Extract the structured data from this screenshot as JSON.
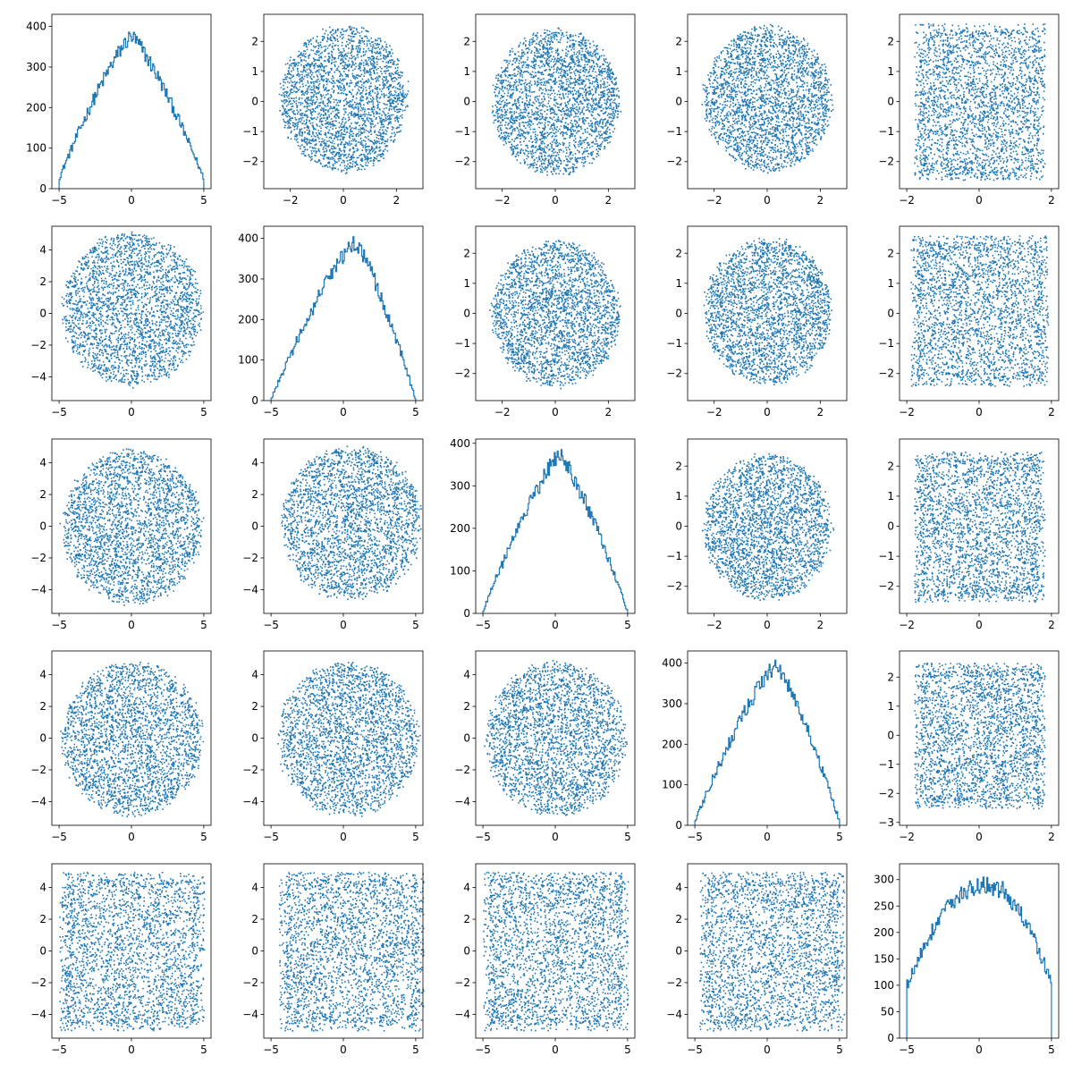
{
  "figure": {
    "rows": 5,
    "cols": 5,
    "mark_color": "#1f77b4",
    "grid": false
  },
  "chart_data": [
    {
      "row": 0,
      "col": 0,
      "type": "histogram",
      "variable": 1,
      "xlim": [
        -5.5,
        5.5
      ],
      "ylim": [
        0,
        430
      ],
      "xticks": [
        -5,
        0,
        5
      ],
      "yticks": [
        0,
        100,
        200,
        300,
        400
      ],
      "profile": "tent",
      "peak": 375,
      "edge": 25,
      "center": 0.0
    },
    {
      "row": 0,
      "col": 1,
      "type": "scatter",
      "xvar": 2,
      "yvar": 1,
      "xlim": [
        -3.0,
        3.0
      ],
      "ylim": [
        -2.9,
        2.9
      ],
      "xticks": [
        -2,
        0,
        2
      ],
      "yticks": [
        -2,
        -1,
        0,
        1,
        2
      ],
      "shape": "disk",
      "cx": 0.0,
      "cy": 0.1,
      "rx": 2.5,
      "ry": 2.5
    },
    {
      "row": 0,
      "col": 2,
      "type": "scatter",
      "xvar": 3,
      "yvar": 1,
      "xlim": [
        -3.0,
        3.0
      ],
      "ylim": [
        -2.9,
        2.9
      ],
      "xticks": [
        -2,
        0,
        2
      ],
      "yticks": [
        -2,
        -1,
        0,
        1,
        2
      ],
      "shape": "disk",
      "cx": 0.0,
      "cy": 0.0,
      "rx": 2.5,
      "ry": 2.5
    },
    {
      "row": 0,
      "col": 3,
      "type": "scatter",
      "xvar": 4,
      "yvar": 1,
      "xlim": [
        -3.0,
        3.0
      ],
      "ylim": [
        -2.9,
        2.9
      ],
      "xticks": [
        -2,
        0,
        2
      ],
      "yticks": [
        -2,
        -1,
        0,
        1,
        2
      ],
      "shape": "disk",
      "cx": 0.0,
      "cy": 0.1,
      "rx": 2.5,
      "ry": 2.5
    },
    {
      "row": 0,
      "col": 4,
      "type": "scatter",
      "xvar": 5,
      "yvar": 1,
      "xlim": [
        -2.2,
        2.2
      ],
      "ylim": [
        -2.9,
        2.9
      ],
      "xticks": [
        -2,
        0,
        2
      ],
      "yticks": [
        -2,
        -1,
        0,
        1,
        2
      ],
      "shape": "box",
      "cx": 0.0,
      "cy": 0.0,
      "rx": 1.8,
      "ry": 2.6
    },
    {
      "row": 1,
      "col": 0,
      "type": "scatter",
      "xvar": 1,
      "yvar": 2,
      "xlim": [
        -5.5,
        5.5
      ],
      "ylim": [
        -5.5,
        5.5
      ],
      "xticks": [
        -5,
        0,
        5
      ],
      "yticks": [
        -4,
        -2,
        0,
        2,
        4
      ],
      "shape": "disk",
      "cx": 0.0,
      "cy": 0.3,
      "rx": 5.0,
      "ry": 5.0
    },
    {
      "row": 1,
      "col": 1,
      "type": "histogram",
      "variable": 2,
      "xlim": [
        -5.5,
        5.5
      ],
      "ylim": [
        0,
        430
      ],
      "xticks": [
        -5,
        0,
        5
      ],
      "yticks": [
        0,
        100,
        200,
        300,
        400
      ],
      "profile": "tent",
      "peak": 390,
      "edge": 3,
      "center": 0.8
    },
    {
      "row": 1,
      "col": 2,
      "type": "scatter",
      "xvar": 3,
      "yvar": 2,
      "xlim": [
        -3.0,
        3.0
      ],
      "ylim": [
        -2.9,
        2.9
      ],
      "xticks": [
        -2,
        0,
        2
      ],
      "yticks": [
        -2,
        -1,
        0,
        1,
        2
      ],
      "shape": "disk",
      "cx": 0.0,
      "cy": 0.0,
      "rx": 2.5,
      "ry": 2.5
    },
    {
      "row": 1,
      "col": 3,
      "type": "scatter",
      "xvar": 4,
      "yvar": 2,
      "xlim": [
        -3.0,
        3.0
      ],
      "ylim": [
        -2.9,
        2.9
      ],
      "xticks": [
        -2,
        0,
        2
      ],
      "yticks": [
        -2,
        -1,
        0,
        1,
        2
      ],
      "shape": "disk",
      "cx": 0.0,
      "cy": 0.1,
      "rx": 2.5,
      "ry": 2.5
    },
    {
      "row": 1,
      "col": 4,
      "type": "scatter",
      "xvar": 5,
      "yvar": 2,
      "xlim": [
        -2.2,
        2.2
      ],
      "ylim": [
        -2.9,
        2.9
      ],
      "xticks": [
        -2,
        0,
        2
      ],
      "yticks": [
        -2,
        -1,
        0,
        1,
        2
      ],
      "shape": "box",
      "cx": 0.0,
      "cy": 0.1,
      "rx": 1.9,
      "ry": 2.5
    },
    {
      "row": 2,
      "col": 0,
      "type": "scatter",
      "xvar": 1,
      "yvar": 3,
      "xlim": [
        -5.5,
        5.5
      ],
      "ylim": [
        -5.5,
        5.5
      ],
      "xticks": [
        -5,
        0,
        5
      ],
      "yticks": [
        -4,
        -2,
        0,
        2,
        4
      ],
      "shape": "disk",
      "cx": 0.0,
      "cy": 0.0,
      "rx": 5.0,
      "ry": 5.0
    },
    {
      "row": 2,
      "col": 1,
      "type": "scatter",
      "xvar": 2,
      "yvar": 3,
      "xlim": [
        -5.5,
        5.5
      ],
      "ylim": [
        -5.5,
        5.5
      ],
      "xticks": [
        -5,
        0,
        5
      ],
      "yticks": [
        -4,
        -2,
        0,
        2,
        4
      ],
      "shape": "disk",
      "cx": 0.5,
      "cy": 0.2,
      "rx": 5.0,
      "ry": 5.0
    },
    {
      "row": 2,
      "col": 2,
      "type": "histogram",
      "variable": 3,
      "xlim": [
        -5.5,
        5.5
      ],
      "ylim": [
        0,
        410
      ],
      "xticks": [
        -5,
        0,
        5
      ],
      "yticks": [
        0,
        100,
        200,
        300,
        400
      ],
      "profile": "tent",
      "peak": 370,
      "edge": 5,
      "center": 0.3
    },
    {
      "row": 2,
      "col": 3,
      "type": "scatter",
      "xvar": 4,
      "yvar": 3,
      "xlim": [
        -3.0,
        3.0
      ],
      "ylim": [
        -2.9,
        2.9
      ],
      "xticks": [
        -2,
        0,
        2
      ],
      "yticks": [
        -2,
        -1,
        0,
        1,
        2
      ],
      "shape": "disk",
      "cx": 0.0,
      "cy": 0.0,
      "rx": 2.5,
      "ry": 2.5
    },
    {
      "row": 2,
      "col": 4,
      "type": "scatter",
      "xvar": 5,
      "yvar": 3,
      "xlim": [
        -2.2,
        2.2
      ],
      "ylim": [
        -2.9,
        2.9
      ],
      "xticks": [
        -2,
        0,
        2
      ],
      "yticks": [
        -2,
        -1,
        0,
        1,
        2
      ],
      "shape": "box",
      "cx": 0.0,
      "cy": 0.0,
      "rx": 1.8,
      "ry": 2.5
    },
    {
      "row": 3,
      "col": 0,
      "type": "scatter",
      "xvar": 1,
      "yvar": 4,
      "xlim": [
        -5.5,
        5.5
      ],
      "ylim": [
        -5.5,
        5.5
      ],
      "xticks": [
        -5,
        0,
        5
      ],
      "yticks": [
        -4,
        -2,
        0,
        2,
        4
      ],
      "shape": "disk",
      "cx": 0.0,
      "cy": 0.0,
      "rx": 5.0,
      "ry": 5.0
    },
    {
      "row": 3,
      "col": 1,
      "type": "scatter",
      "xvar": 2,
      "yvar": 4,
      "xlim": [
        -5.5,
        5.5
      ],
      "ylim": [
        -5.5,
        5.5
      ],
      "xticks": [
        -5,
        0,
        5
      ],
      "yticks": [
        -4,
        -2,
        0,
        2,
        4
      ],
      "shape": "disk",
      "cx": 0.3,
      "cy": 0.0,
      "rx": 5.0,
      "ry": 5.0
    },
    {
      "row": 3,
      "col": 2,
      "type": "scatter",
      "xvar": 3,
      "yvar": 4,
      "xlim": [
        -5.5,
        5.5
      ],
      "ylim": [
        -5.5,
        5.5
      ],
      "xticks": [
        -5,
        0,
        5
      ],
      "yticks": [
        -4,
        -2,
        0,
        2,
        4
      ],
      "shape": "disk",
      "cx": 0.0,
      "cy": 0.0,
      "rx": 5.0,
      "ry": 5.0
    },
    {
      "row": 3,
      "col": 3,
      "type": "histogram",
      "variable": 4,
      "xlim": [
        -5.5,
        5.5
      ],
      "ylim": [
        0,
        430
      ],
      "xticks": [
        -5,
        0,
        5
      ],
      "yticks": [
        0,
        100,
        200,
        300,
        400
      ],
      "profile": "tent",
      "peak": 395,
      "edge": 10,
      "center": 0.6
    },
    {
      "row": 3,
      "col": 4,
      "type": "scatter",
      "xvar": 5,
      "yvar": 4,
      "xlim": [
        -2.2,
        2.2
      ],
      "ylim": [
        -3.1,
        2.9
      ],
      "xticks": [
        -2,
        0,
        2
      ],
      "yticks": [
        -3,
        -2,
        -1,
        0,
        1,
        2
      ],
      "shape": "box",
      "cx": 0.0,
      "cy": 0.0,
      "rx": 1.8,
      "ry": 2.5
    },
    {
      "row": 4,
      "col": 0,
      "type": "scatter",
      "xvar": 1,
      "yvar": 5,
      "xlim": [
        -5.5,
        5.5
      ],
      "ylim": [
        -5.5,
        5.5
      ],
      "xticks": [
        -5,
        0,
        5
      ],
      "yticks": [
        -4,
        -2,
        0,
        2,
        4
      ],
      "shape": "box",
      "cx": 0.0,
      "cy": 0.0,
      "rx": 5.0,
      "ry": 5.0
    },
    {
      "row": 4,
      "col": 1,
      "type": "scatter",
      "xvar": 2,
      "yvar": 5,
      "xlim": [
        -5.5,
        5.5
      ],
      "ylim": [
        -5.5,
        5.5
      ],
      "xticks": [
        -5,
        0,
        5
      ],
      "yticks": [
        -4,
        -2,
        0,
        2,
        4
      ],
      "shape": "box",
      "cx": 0.5,
      "cy": 0.0,
      "rx": 5.0,
      "ry": 5.0
    },
    {
      "row": 4,
      "col": 2,
      "type": "scatter",
      "xvar": 3,
      "yvar": 5,
      "xlim": [
        -5.5,
        5.5
      ],
      "ylim": [
        -5.5,
        5.5
      ],
      "xticks": [
        -5,
        0,
        5
      ],
      "yticks": [
        -4,
        -2,
        0,
        2,
        4
      ],
      "shape": "box",
      "cx": 0.0,
      "cy": 0.0,
      "rx": 5.0,
      "ry": 5.0
    },
    {
      "row": 4,
      "col": 3,
      "type": "scatter",
      "xvar": 4,
      "yvar": 5,
      "xlim": [
        -5.5,
        5.5
      ],
      "ylim": [
        -5.5,
        5.5
      ],
      "xticks": [
        -5,
        0,
        5
      ],
      "yticks": [
        -4,
        -2,
        0,
        2,
        4
      ],
      "shape": "box",
      "cx": 0.3,
      "cy": 0.0,
      "rx": 5.0,
      "ry": 5.0
    },
    {
      "row": 4,
      "col": 4,
      "type": "histogram",
      "variable": 5,
      "xlim": [
        -5.5,
        5.5
      ],
      "ylim": [
        0,
        330
      ],
      "xticks": [
        -5,
        0,
        5
      ],
      "yticks": [
        0,
        50,
        100,
        150,
        200,
        250,
        300
      ],
      "profile": "dome",
      "peak": 290,
      "edge": 100,
      "center": 0.5
    }
  ]
}
